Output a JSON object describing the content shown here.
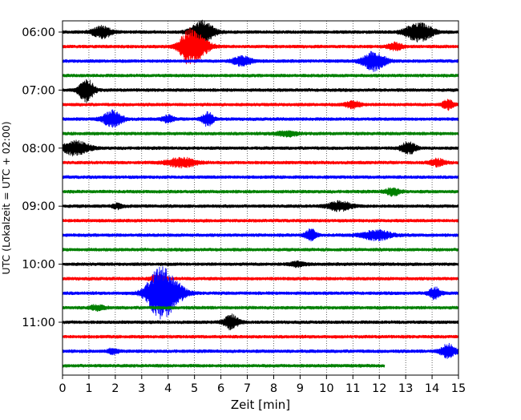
{
  "chart_data": {
    "type": "line",
    "xlabel": "Zeit  [min]",
    "ylabel": "UTC (Lokalzeit = UTC + 02:00)",
    "xlim": [
      0,
      15
    ],
    "x_ticks": [
      0,
      1,
      2,
      3,
      4,
      5,
      6,
      7,
      8,
      9,
      10,
      11,
      12,
      13,
      14,
      15
    ],
    "x_tick_labels": [
      "0",
      "1",
      "2",
      "3",
      "4",
      "5",
      "6",
      "7",
      "8",
      "9",
      "10",
      "11",
      "12",
      "13",
      "14",
      "15"
    ],
    "vertical_grid": true,
    "y_tick_labels": [
      "06:00",
      "07:00",
      "08:00",
      "09:00",
      "10:00",
      "11:00"
    ],
    "y_tick_trace_index": [
      0,
      4,
      8,
      12,
      16,
      20
    ],
    "trace_interval_min": 15,
    "color_cycle": [
      "#000000",
      "#ff0000",
      "#0000ff",
      "#008000"
    ],
    "series": [
      {
        "start": "06:00",
        "color": "#000000",
        "end_min": 15,
        "events": [
          [
            1.5,
            0.5,
            0.25
          ],
          [
            5.3,
            1.0,
            0.3
          ],
          [
            13.5,
            0.8,
            0.35
          ]
        ]
      },
      {
        "start": "06:15",
        "color": "#ff0000",
        "end_min": 15,
        "events": [
          [
            5.0,
            1.2,
            0.35
          ],
          [
            4.7,
            0.6,
            0.2
          ],
          [
            12.6,
            0.3,
            0.2
          ]
        ]
      },
      {
        "start": "06:30",
        "color": "#0000ff",
        "end_min": 15,
        "events": [
          [
            6.8,
            0.4,
            0.25
          ],
          [
            11.8,
            0.8,
            0.3
          ]
        ]
      },
      {
        "start": "06:45",
        "color": "#008000",
        "end_min": 15,
        "events": []
      },
      {
        "start": "07:00",
        "color": "#000000",
        "end_min": 15,
        "events": [
          [
            0.9,
            1.0,
            0.2
          ]
        ]
      },
      {
        "start": "07:15",
        "color": "#ff0000",
        "end_min": 15,
        "events": [
          [
            14.6,
            0.4,
            0.15
          ],
          [
            11.0,
            0.3,
            0.2
          ]
        ]
      },
      {
        "start": "07:30",
        "color": "#0000ff",
        "end_min": 15,
        "events": [
          [
            1.9,
            0.7,
            0.25
          ],
          [
            5.5,
            0.6,
            0.15
          ],
          [
            4.0,
            0.3,
            0.15
          ]
        ]
      },
      {
        "start": "07:45",
        "color": "#008000",
        "end_min": 15,
        "events": [
          [
            8.5,
            0.2,
            0.3
          ]
        ]
      },
      {
        "start": "08:00",
        "color": "#000000",
        "end_min": 15,
        "events": [
          [
            0.5,
            0.6,
            0.35
          ],
          [
            13.1,
            0.5,
            0.2
          ]
        ]
      },
      {
        "start": "08:15",
        "color": "#ff0000",
        "end_min": 15,
        "events": [
          [
            4.5,
            0.4,
            0.4
          ],
          [
            14.2,
            0.3,
            0.2
          ]
        ]
      },
      {
        "start": "08:30",
        "color": "#0000ff",
        "end_min": 15,
        "events": []
      },
      {
        "start": "08:45",
        "color": "#008000",
        "end_min": 15,
        "events": [
          [
            12.5,
            0.3,
            0.2
          ]
        ]
      },
      {
        "start": "09:00",
        "color": "#000000",
        "end_min": 15,
        "events": [
          [
            10.5,
            0.4,
            0.3
          ],
          [
            2.1,
            0.2,
            0.15
          ]
        ]
      },
      {
        "start": "09:15",
        "color": "#ff0000",
        "end_min": 15,
        "events": []
      },
      {
        "start": "09:30",
        "color": "#0000ff",
        "end_min": 15,
        "events": [
          [
            9.4,
            0.5,
            0.15
          ],
          [
            11.9,
            0.4,
            0.4
          ]
        ]
      },
      {
        "start": "09:45",
        "color": "#008000",
        "end_min": 15,
        "events": []
      },
      {
        "start": "10:00",
        "color": "#000000",
        "end_min": 15,
        "events": [
          [
            8.9,
            0.2,
            0.2
          ]
        ]
      },
      {
        "start": "10:15",
        "color": "#ff0000",
        "end_min": 15,
        "events": [
          [
            3.6,
            0.3,
            0.2
          ]
        ]
      },
      {
        "start": "10:30",
        "color": "#0000ff",
        "end_min": 15,
        "events": [
          [
            3.7,
            2.2,
            0.35
          ],
          [
            4.3,
            0.6,
            0.3
          ],
          [
            14.1,
            0.5,
            0.15
          ]
        ]
      },
      {
        "start": "10:45",
        "color": "#008000",
        "end_min": 15,
        "events": [
          [
            1.3,
            0.2,
            0.2
          ]
        ]
      },
      {
        "start": "11:00",
        "color": "#000000",
        "end_min": 15,
        "events": [
          [
            6.4,
            0.6,
            0.2
          ]
        ]
      },
      {
        "start": "11:15",
        "color": "#ff0000",
        "end_min": 15,
        "events": []
      },
      {
        "start": "11:30",
        "color": "#0000ff",
        "end_min": 15,
        "events": [
          [
            14.6,
            0.6,
            0.2
          ],
          [
            1.9,
            0.2,
            0.15
          ]
        ]
      },
      {
        "start": "11:45",
        "color": "#008000",
        "end_min": 12.2,
        "events": []
      }
    ]
  }
}
